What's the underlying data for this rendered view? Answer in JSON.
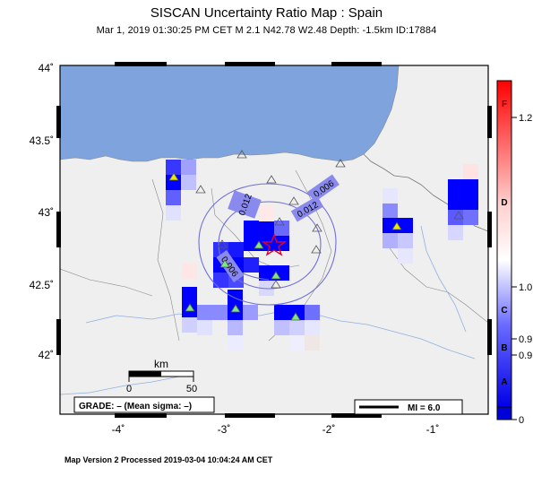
{
  "title": "SISCAN Uncertainty Ratio Map : Spain",
  "subtitle": "Mar  1, 2019 01:30:25 PM CET   M 2.1   N42.78 W2.48   Depth: -1.5km   ID:17884",
  "footer": "Map Version 2 Processed 2019-03-04 10:04:24 AM CET",
  "axes": {
    "lat_labels": [
      "44˚",
      "43.5˚",
      "43˚",
      "42.5˚",
      "42˚"
    ],
    "lon_labels": [
      "-4˚",
      "-3˚",
      "-2˚",
      "-1˚"
    ]
  },
  "contours": {
    "labels": [
      "0.012",
      "0.006",
      "0.012",
      "0.006"
    ]
  },
  "scale_bar": {
    "unit": "km",
    "ticks": [
      "0",
      "50"
    ]
  },
  "grade_box": "GRADE: – (Mean sigma: –)",
  "mi_legend": "MI = 6.0",
  "colorbar": {
    "grade_letters": [
      "F",
      "D",
      "C",
      "B",
      "A"
    ],
    "values": [
      "1.2",
      "1.0",
      "0.9",
      "0.9",
      "0"
    ]
  },
  "colors": {
    "water": "#7ea3dd",
    "land": "#efefef",
    "contour": "#6f6fd8",
    "epicenter": "#e0002a",
    "cell_blue": "#0000ff",
    "cell_red": "#ff0000"
  }
}
